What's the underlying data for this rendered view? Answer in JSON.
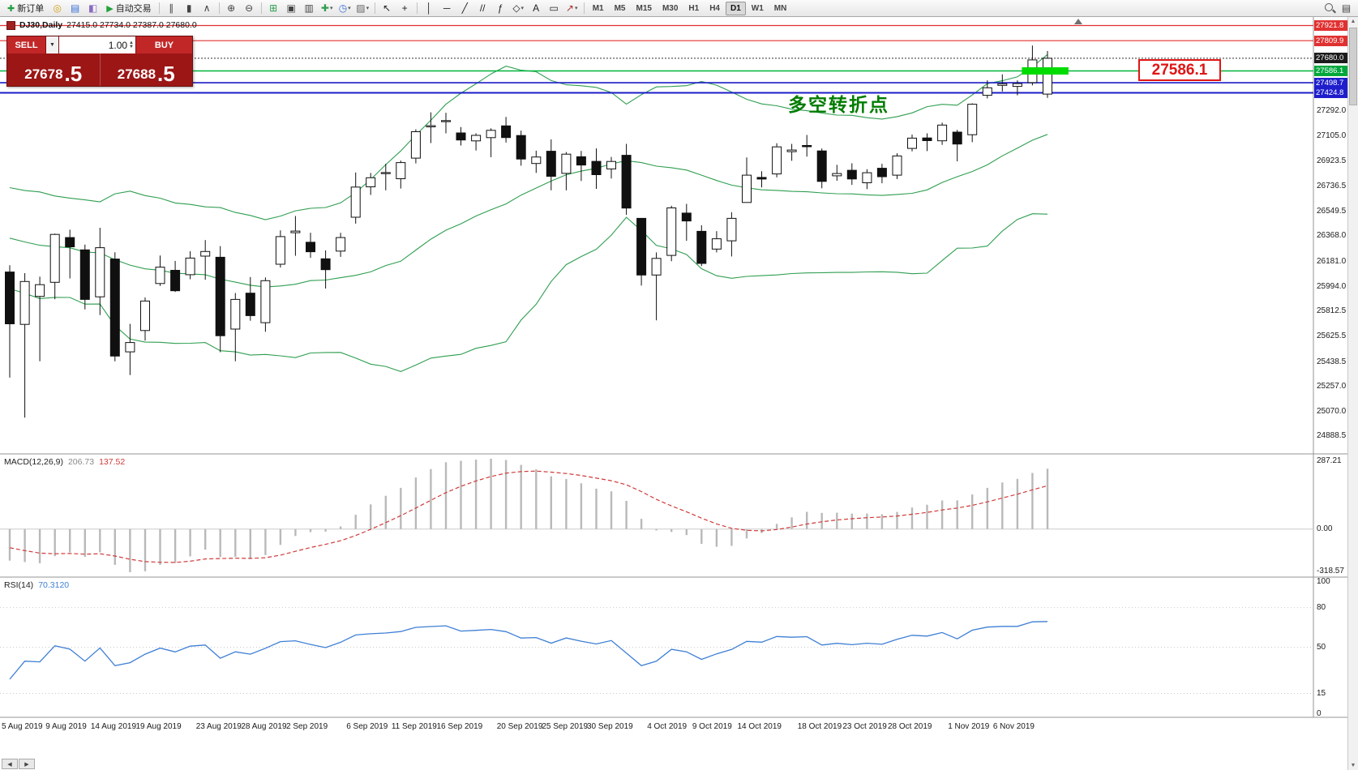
{
  "toolbar": {
    "items": [
      {
        "kind": "button",
        "name": "new-order-button",
        "glyph": "✚",
        "glyph_color": "#1f9d3f",
        "label": "新订单"
      },
      {
        "kind": "icon",
        "name": "mql5-community-icon",
        "glyph": "◎",
        "color": "#d4a017"
      },
      {
        "kind": "icon",
        "name": "charts-cycle-icon",
        "glyph": "▤",
        "color": "#3a6fd8"
      },
      {
        "kind": "icon",
        "name": "strategy-tester-icon",
        "glyph": "◧",
        "color": "#8a6bc0"
      },
      {
        "kind": "button",
        "name": "autotrading-button",
        "glyph": "▶",
        "glyph_color": "#23a23c",
        "label": "自动交易"
      },
      {
        "kind": "sep"
      },
      {
        "kind": "icon",
        "name": "bar-chart-type-icon",
        "glyph": "∥",
        "color": "#444444"
      },
      {
        "kind": "icon",
        "name": "candlestick-type-icon",
        "glyph": "▮",
        "color": "#444444"
      },
      {
        "kind": "icon",
        "name": "line-chart-type-icon",
        "glyph": "∧",
        "color": "#444444"
      },
      {
        "kind": "sep"
      },
      {
        "kind": "icon",
        "name": "zoom-in-icon",
        "glyph": "⊕",
        "color": "#444444"
      },
      {
        "kind": "icon",
        "name": "zoom-out-icon",
        "glyph": "⊖",
        "color": "#444444"
      },
      {
        "kind": "sep"
      },
      {
        "kind": "icon",
        "name": "tile-windows-icon",
        "glyph": "⊞",
        "color": "#2f9e4f"
      },
      {
        "kind": "icon",
        "name": "cascade-windows-icon",
        "glyph": "▣",
        "color": "#444444"
      },
      {
        "kind": "icon",
        "name": "arrange-windows-icon",
        "glyph": "▥",
        "color": "#444444"
      },
      {
        "kind": "icon",
        "name": "new-chart-icon",
        "glyph": "✚",
        "color": "#2f9e4f",
        "dropdown": true
      },
      {
        "kind": "icon",
        "name": "profiles-icon",
        "glyph": "◷",
        "color": "#3a6fd8",
        "dropdown": true
      },
      {
        "kind": "icon",
        "name": "templates-icon",
        "glyph": "▨",
        "color": "#666666",
        "dropdown": true
      },
      {
        "kind": "sep"
      },
      {
        "kind": "icon",
        "name": "cursor-icon",
        "glyph": "↖",
        "color": "#222222"
      },
      {
        "kind": "icon",
        "name": "crosshair-icon",
        "glyph": "+",
        "color": "#222222"
      },
      {
        "kind": "sep"
      },
      {
        "kind": "icon",
        "name": "vertical-line-icon",
        "glyph": "│",
        "color": "#222222"
      },
      {
        "kind": "icon",
        "name": "horizontal-line-icon",
        "glyph": "─",
        "color": "#222222"
      },
      {
        "kind": "icon",
        "name": "trendline-icon",
        "glyph": "╱",
        "color": "#222222"
      },
      {
        "kind": "icon",
        "name": "channel-icon",
        "glyph": "//",
        "color": "#222222"
      },
      {
        "kind": "icon",
        "name": "fibonacci-icon",
        "glyph": "ƒ",
        "color": "#222222"
      },
      {
        "kind": "icon",
        "name": "shapes-icon",
        "glyph": "◇",
        "color": "#222222",
        "dropdown": true
      },
      {
        "kind": "icon",
        "name": "text-icon",
        "glyph": "A",
        "color": "#222222"
      },
      {
        "kind": "icon",
        "name": "text-label-icon",
        "glyph": "▭",
        "color": "#222222"
      },
      {
        "kind": "icon",
        "name": "arrows-icon",
        "glyph": "↗",
        "color": "#b03030",
        "dropdown": true
      },
      {
        "kind": "sep"
      }
    ],
    "timeframes": [
      "M1",
      "M5",
      "M15",
      "M30",
      "H1",
      "H4",
      "D1",
      "W1",
      "MN"
    ],
    "active_timeframe": "D1",
    "right_icons": [
      {
        "name": "search-icon",
        "kind": "mag"
      },
      {
        "name": "data-window-icon",
        "kind": "icon",
        "glyph": "▤",
        "color": "#444444"
      }
    ]
  },
  "chart_window": {
    "title": "DJ30,Daily",
    "ohlc_text": "27415.0 27734.0 27387.0 27680.0"
  },
  "trade_panel": {
    "sell_label": "SELL",
    "buy_label": "BUY",
    "volume": "1.00",
    "sell_price_main": "27678",
    "sell_price_pip": ".5",
    "buy_price_main": "27688",
    "buy_price_pip": ".5"
  },
  "annotations": {
    "turning_point_text": "多空转折点",
    "turning_point_color": "#007c00",
    "price_flag_text": "27586.1",
    "price_flag_color": "#e01515",
    "highlight_segment": {
      "price": 27586.1,
      "from_candle": 67.3,
      "to_candle": 70.4,
      "color": "#00dc00"
    }
  },
  "price_lines": [
    {
      "price": 27921.8,
      "color": "#e03131",
      "width": 1.2
    },
    {
      "price": 27809.9,
      "color": "#e03131",
      "width": 1.2
    },
    {
      "price": 27680.0,
      "color": "#303030",
      "width": 1,
      "dash": "2,2"
    },
    {
      "price": 27586.1,
      "color": "#00b43c",
      "width": 1.4
    },
    {
      "price": 27498.7,
      "color": "#1c1cc8",
      "width": 1.6
    },
    {
      "price": 27424.8,
      "color": "#1c1cc8",
      "width": 2
    }
  ],
  "price_axis": {
    "labels": [
      27292.0,
      27105.0,
      26923.5,
      26736.5,
      26549.5,
      26368.0,
      26181.0,
      25994.0,
      25812.5,
      25625.5,
      25438.5,
      25257.0,
      25070.0,
      24888.5
    ],
    "tags": [
      {
        "price": 27921.8,
        "color": "#e03131"
      },
      {
        "price": 27809.9,
        "color": "#e03131"
      },
      {
        "price": 27680.0,
        "color": "#1c1c1c"
      },
      {
        "price": 27586.1,
        "color": "#00a83c"
      },
      {
        "price": 27498.7,
        "color": "#1e1ecc"
      },
      {
        "price": 27424.8,
        "color": "#1e1ecc"
      }
    ]
  },
  "macd_panel": {
    "title": "MACD(12,26,9)",
    "value_main": "206.73",
    "value_signal": "137.52",
    "axis_top": "287.21",
    "axis_zero": "0.00",
    "axis_bottom": "-318.57"
  },
  "rsi_panel": {
    "title": "RSI(14)",
    "value": "70.3120",
    "axis_labels": [
      100,
      80,
      50,
      15,
      0
    ],
    "levels": [
      80,
      50,
      15
    ]
  },
  "chart_data": {
    "type": "candlestick",
    "symbol": "DJ30",
    "timeframe": "Daily",
    "ohlc_current": {
      "open": 27415.0,
      "high": 27734.0,
      "low": 27387.0,
      "close": 27680.0
    },
    "overlay": "Bollinger Bands (20,2)",
    "x_axis_labels": [
      "5 Aug 2019",
      "9 Aug 2019",
      "14 Aug 2019",
      "19 Aug 2019",
      "23 Aug 2019",
      "28 Aug 2019",
      "2 Sep 2019",
      "6 Sep 2019",
      "11 Sep 2019",
      "16 Sep 2019",
      "20 Sep 2019",
      "25 Sep 2019",
      "30 Sep 2019",
      "4 Oct 2019",
      "9 Oct 2019",
      "14 Oct 2019",
      "18 Oct 2019",
      "23 Oct 2019",
      "28 Oct 2019",
      "1 Nov 2019",
      "6 Nov 2019"
    ],
    "x_axis_label_candle_indices": [
      0,
      4,
      7,
      10,
      14,
      17,
      20,
      24,
      27,
      30,
      34,
      37,
      40,
      44,
      47,
      50,
      54,
      57,
      60,
      64,
      67
    ],
    "offscreen_warmup_closes": [
      26550,
      26600,
      26500,
      26580,
      26450,
      26520,
      26420,
      26480,
      26380,
      26440,
      26340,
      26400,
      26300,
      26380,
      26280,
      26340,
      26240,
      26300,
      26200,
      26150
    ],
    "candles": [
      [
        26100,
        26150,
        25320,
        25717
      ],
      [
        25713,
        26092,
        25024,
        26030
      ],
      [
        25920,
        26066,
        25441,
        26007
      ],
      [
        26024,
        26384,
        25899,
        26378
      ],
      [
        26355,
        26413,
        26053,
        26287
      ],
      [
        26264,
        26303,
        25824,
        25898
      ],
      [
        25917,
        26427,
        25782,
        26280
      ],
      [
        26196,
        26246,
        25441,
        25479
      ],
      [
        25510,
        25717,
        25339,
        25579
      ],
      [
        25668,
        25912,
        25593,
        25886
      ],
      [
        26015,
        26222,
        25998,
        26136
      ],
      [
        26113,
        26182,
        25953,
        25962
      ],
      [
        26080,
        26254,
        26047,
        26203
      ],
      [
        26218,
        26336,
        26043,
        26252
      ],
      [
        26209,
        26292,
        25508,
        25629
      ],
      [
        25679,
        25945,
        25441,
        25898
      ],
      [
        25944,
        26063,
        25740,
        25778
      ],
      [
        25726,
        26060,
        25659,
        26036
      ],
      [
        26158,
        26408,
        26133,
        26362
      ],
      [
        26391,
        26514,
        26220,
        26403
      ],
      [
        26320,
        26391,
        26205,
        26250
      ],
      [
        26198,
        26260,
        25978,
        26118
      ],
      [
        26255,
        26390,
        26212,
        26355
      ],
      [
        26505,
        26836,
        26458,
        26728
      ],
      [
        26730,
        26832,
        26670,
        26797
      ],
      [
        26834,
        26900,
        26704,
        26835
      ],
      [
        26790,
        26924,
        26717,
        26909
      ],
      [
        26942,
        27155,
        26903,
        27137
      ],
      [
        27173,
        27280,
        27053,
        27182
      ],
      [
        27212,
        27277,
        27125,
        27219
      ],
      [
        27128,
        27172,
        27035,
        27076
      ],
      [
        27069,
        27125,
        26998,
        27110
      ],
      [
        27093,
        27162,
        26949,
        27147
      ],
      [
        27180,
        27246,
        27057,
        27094
      ],
      [
        27109,
        27145,
        26886,
        26935
      ],
      [
        26902,
        26997,
        26833,
        26950
      ],
      [
        26993,
        27080,
        26704,
        26808
      ],
      [
        26829,
        26987,
        26704,
        26971
      ],
      [
        26952,
        26995,
        26773,
        26891
      ],
      [
        26918,
        27014,
        26715,
        26820
      ],
      [
        26862,
        26951,
        26791,
        26917
      ],
      [
        26963,
        27047,
        26523,
        26573
      ],
      [
        26497,
        26497,
        26000,
        26078
      ],
      [
        26078,
        26245,
        25743,
        26201
      ],
      [
        26223,
        26590,
        26180,
        26574
      ],
      [
        26536,
        26604,
        26331,
        26478
      ],
      [
        26401,
        26446,
        26144,
        26164
      ],
      [
        26270,
        26402,
        26245,
        26346
      ],
      [
        26331,
        26542,
        26215,
        26497
      ],
      [
        26614,
        26947,
        26614,
        26816
      ],
      [
        26799,
        26845,
        26725,
        26787
      ],
      [
        26825,
        27052,
        26800,
        27025
      ],
      [
        26990,
        27047,
        26922,
        27002
      ],
      [
        27035,
        27113,
        26953,
        27026
      ],
      [
        26995,
        27013,
        26719,
        26770
      ],
      [
        26811,
        26892,
        26775,
        26828
      ],
      [
        26852,
        26904,
        26744,
        26788
      ],
      [
        26760,
        26860,
        26713,
        26834
      ],
      [
        26867,
        26900,
        26756,
        26805
      ],
      [
        26816,
        26978,
        26787,
        26958
      ],
      [
        27014,
        27116,
        26992,
        27090
      ],
      [
        27091,
        27125,
        26994,
        27071
      ],
      [
        27070,
        27204,
        27040,
        27186
      ],
      [
        27134,
        27151,
        26918,
        27046
      ],
      [
        27115,
        27347,
        27060,
        27340
      ],
      [
        27406,
        27517,
        27383,
        27462
      ],
      [
        27480,
        27561,
        27434,
        27492
      ],
      [
        27472,
        27516,
        27406,
        27493
      ],
      [
        27500,
        27774,
        27480,
        27668
      ],
      [
        27415,
        27734,
        27387,
        27680
      ]
    ],
    "sub_indicators": [
      {
        "type": "bar",
        "name": "MACD(12,26,9)",
        "current": [
          206.73,
          137.52
        ],
        "visible_range": [
          -318.57,
          287.21
        ]
      },
      {
        "type": "line",
        "name": "RSI(14)",
        "current": 70.312,
        "range": [
          0,
          100
        ]
      }
    ]
  }
}
